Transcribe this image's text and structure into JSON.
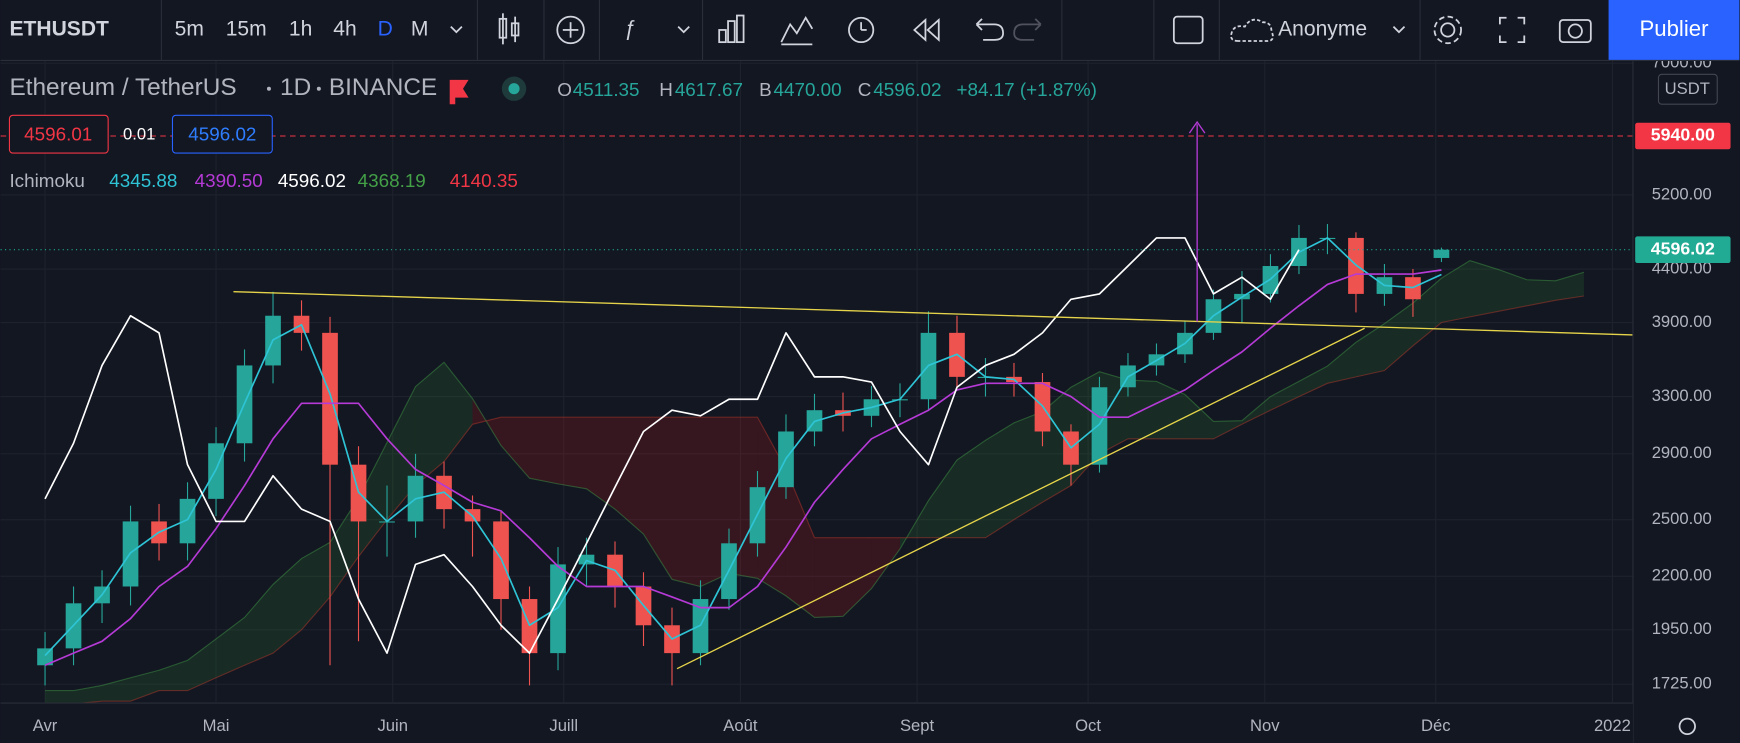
{
  "toolbar": {
    "symbol": "ETHUSDT",
    "intervals": [
      "5m",
      "15m",
      "1h",
      "4h",
      "D",
      "M"
    ],
    "account": "Anonyme",
    "publish": "Publier"
  },
  "legend": {
    "instrument": "Ethereum / TetherUS",
    "timeframe": "1D",
    "exchange": "BINANCE",
    "ohlc": {
      "o_label": "O",
      "o": "4511.35",
      "h_label": "H",
      "h": "4617.67",
      "l_label": "B",
      "l": "4470.00",
      "c_label": "C",
      "c": "4596.02",
      "change": "+84.17 (+1.87%)"
    },
    "sell": "4596.01",
    "spread": "0.01",
    "buy": "4596.02",
    "indicator": "Ichimoku",
    "indicator_values": [
      "4345.88",
      "4390.50",
      "4596.02",
      "4368.19",
      "4140.35"
    ]
  },
  "chart_data": {
    "type": "candlestick",
    "yscale": "log",
    "grid": true,
    "currency": "USDT",
    "up_color": "#26a69a",
    "down_color": "#ef5350",
    "x": [
      0,
      5,
      10,
      15,
      20,
      25,
      30,
      35,
      40,
      45,
      50,
      55,
      60,
      65,
      70,
      75,
      80,
      85,
      90,
      95,
      100,
      105,
      110,
      115,
      120,
      125,
      130,
      135,
      140,
      145,
      150,
      155,
      160,
      165,
      170,
      175,
      180,
      185,
      190,
      195,
      200,
      205,
      210,
      215,
      220,
      225,
      230,
      235,
      240,
      245
    ],
    "open": [
      1800,
      1870,
      2070,
      2150,
      2490,
      2370,
      2620,
      2970,
      3540,
      3960,
      3810,
      2830,
      2490,
      2490,
      2760,
      2560,
      2490,
      2090,
      1850,
      2260,
      2310,
      2150,
      1970,
      1850,
      2090,
      2370,
      2690,
      3050,
      3200,
      3160,
      3280,
      3280,
      3810,
      3450,
      3450,
      3410,
      3050,
      2830,
      3370,
      3540,
      3630,
      3810,
      4110,
      4160,
      4430,
      4720,
      4720,
      4160,
      4320,
      4511.35
    ],
    "high": [
      1940,
      2150,
      2230,
      2580,
      2590,
      2720,
      3080,
      3670,
      4180,
      4100,
      3950,
      2950,
      2700,
      2900,
      2850,
      2640,
      2550,
      2150,
      2350,
      2400,
      2380,
      2220,
      2050,
      2180,
      2450,
      2790,
      3170,
      3320,
      3330,
      3380,
      3400,
      4000,
      3960,
      3600,
      3560,
      3480,
      3100,
      3450,
      3640,
      3720,
      3910,
      4200,
      4380,
      4550,
      4860,
      4870,
      4780,
      4450,
      4400,
      4617.67
    ],
    "low": [
      1720,
      1800,
      1980,
      2060,
      2280,
      2280,
      2520,
      2850,
      3400,
      3660,
      1800,
      1900,
      2300,
      2400,
      2450,
      2300,
      1950,
      1720,
      1780,
      2150,
      2050,
      1880,
      1720,
      1800,
      2040,
      2300,
      2620,
      2950,
      3050,
      3080,
      3150,
      3200,
      3350,
      3300,
      3300,
      2950,
      2700,
      2780,
      3300,
      3460,
      3560,
      3750,
      3900,
      4080,
      4350,
      4550,
      3990,
      4050,
      3950,
      4470.0
    ],
    "close": [
      1870,
      2070,
      2150,
      2490,
      2370,
      2620,
      2970,
      3540,
      3960,
      3810,
      2830,
      2490,
      2490,
      2760,
      2560,
      2490,
      2090,
      1850,
      2260,
      2310,
      2150,
      1970,
      1850,
      2090,
      2370,
      2690,
      3050,
      3200,
      3160,
      3280,
      3280,
      3810,
      3450,
      3450,
      3410,
      3050,
      2830,
      3370,
      3540,
      3630,
      3810,
      4110,
      4160,
      4430,
      4720,
      4720,
      4160,
      4320,
      4110,
      4596.02
    ],
    "xlim": [
      -7.8,
      278.6
    ],
    "xticks": [
      {
        "value": 0,
        "label": "Avr"
      },
      {
        "value": 30,
        "label": "Mai"
      },
      {
        "value": 61,
        "label": "Juin"
      },
      {
        "value": 91,
        "label": "Juill"
      },
      {
        "value": 122,
        "label": "Août"
      },
      {
        "value": 153,
        "label": "Sept"
      },
      {
        "value": 183,
        "label": "Oct"
      },
      {
        "value": 214,
        "label": "Nov"
      },
      {
        "value": 244,
        "label": "Déc"
      },
      {
        "value": 275,
        "label": "2022"
      }
    ],
    "ylim": [
      1657,
      7035
    ],
    "yticks": [
      {
        "value": 7000,
        "label": "7000.00"
      },
      {
        "value": 5200,
        "label": "5200.00"
      },
      {
        "value": 4400,
        "label": "4400.00"
      },
      {
        "value": 3900,
        "label": "3900.00"
      },
      {
        "value": 3300,
        "label": "3300.00"
      },
      {
        "value": 2900,
        "label": "2900.00"
      },
      {
        "value": 2500,
        "label": "2500.00"
      },
      {
        "value": 2200,
        "label": "2200.00"
      },
      {
        "value": 1950,
        "label": "1950.00"
      },
      {
        "value": 1725,
        "label": "1725.00"
      }
    ],
    "price_lines": [
      {
        "value": 5940,
        "label": "5940.00",
        "color": "#f23645",
        "style": "dashed"
      },
      {
        "value": 4596.02,
        "label": "4596.02",
        "color": "#22ab94",
        "style": "dotted"
      }
    ],
    "overlays": [
      {
        "color": "#2ec4d6",
        "x": [
          0,
          5,
          10,
          15,
          20,
          25,
          30,
          35,
          40,
          45,
          50,
          55,
          60,
          65,
          70,
          75,
          80,
          85,
          90,
          95,
          100,
          105,
          110,
          115,
          120,
          125,
          130,
          135,
          140,
          145,
          150,
          155,
          160,
          165,
          170,
          175,
          180,
          185,
          190,
          195,
          200,
          205,
          210,
          215,
          220,
          225,
          230,
          235,
          240,
          245
        ],
        "values": [
          1840,
          1970,
          2110,
          2320,
          2430,
          2500,
          2800,
          3250,
          3750,
          3880,
          3320,
          2660,
          2490,
          2620,
          2660,
          2520,
          2290,
          1970,
          2050,
          2280,
          2230,
          2060,
          1910,
          1970,
          2230,
          2530,
          2870,
          3120,
          3180,
          3220,
          3280,
          3540,
          3630,
          3450,
          3430,
          3230,
          2940,
          3100,
          3450,
          3580,
          3720,
          3960,
          4130,
          4300,
          4570,
          4720,
          4440,
          4240,
          4220,
          4345.88
        ]
      },
      {
        "color": "#b53ad6",
        "x": [
          0,
          5,
          10,
          15,
          20,
          25,
          30,
          35,
          40,
          45,
          50,
          55,
          60,
          65,
          70,
          75,
          80,
          85,
          90,
          95,
          100,
          105,
          110,
          115,
          120,
          125,
          130,
          135,
          140,
          145,
          150,
          155,
          160,
          165,
          170,
          175,
          180,
          185,
          190,
          195,
          200,
          205,
          210,
          215,
          220,
          225,
          230,
          235,
          240,
          245
        ],
        "values": [
          1800,
          1850,
          1900,
          2000,
          2150,
          2250,
          2450,
          2700,
          3000,
          3250,
          3250,
          3250,
          3000,
          2800,
          2700,
          2600,
          2550,
          2400,
          2250,
          2150,
          2150,
          2150,
          2100,
          2050,
          2050,
          2150,
          2350,
          2600,
          2800,
          3000,
          3100,
          3200,
          3350,
          3400,
          3400,
          3400,
          3300,
          3150,
          3150,
          3250,
          3350,
          3500,
          3650,
          3850,
          4050,
          4250,
          4350,
          4350,
          4350,
          4390.5
        ]
      },
      {
        "color": "#ffffff",
        "x": [
          0,
          5,
          10,
          15,
          20,
          25,
          30,
          35,
          40,
          45,
          50,
          55,
          60,
          65,
          70,
          75,
          80,
          85,
          90,
          95,
          100,
          105,
          110,
          115,
          120,
          125,
          130,
          135,
          140,
          145,
          150,
          155,
          160,
          165,
          170,
          175,
          180,
          185,
          190,
          195,
          200,
          205,
          210,
          215,
          220
        ],
        "values": [
          2620,
          2970,
          3540,
          3960,
          3810,
          2830,
          2490,
          2490,
          2760,
          2560,
          2490,
          2090,
          1850,
          2260,
          2310,
          2150,
          1970,
          1850,
          2090,
          2370,
          2690,
          3050,
          3200,
          3160,
          3280,
          3280,
          3810,
          3450,
          3450,
          3410,
          3050,
          2830,
          3370,
          3540,
          3630,
          3810,
          4110,
          4160,
          4430,
          4720,
          4720,
          4160,
          4320,
          4110,
          4596.02
        ]
      }
    ],
    "cloud": {
      "a_color": "#43a047",
      "b_color": "#c0392b",
      "up_fill": "#2e7d32",
      "down_fill": "#b71c1c",
      "x": [
        0,
        5,
        10,
        15,
        20,
        25,
        30,
        35,
        40,
        45,
        50,
        55,
        60,
        65,
        70,
        75,
        80,
        85,
        90,
        95,
        100,
        105,
        110,
        115,
        120,
        125,
        130,
        135,
        140,
        145,
        150,
        155,
        160,
        165,
        170,
        175,
        180,
        185,
        190,
        195,
        200,
        205,
        210,
        215,
        220,
        225,
        230,
        235,
        240,
        245,
        250,
        255,
        260,
        265,
        270
      ],
      "a": [
        1700,
        1700,
        1720,
        1750,
        1780,
        1820,
        1910,
        2005,
        2160,
        2290,
        2375,
        2625,
        2975,
        3375,
        3565,
        3285,
        2955,
        2745,
        2710,
        2680,
        2560,
        2420,
        2185,
        2150,
        2215,
        2190,
        2105,
        2005,
        2010,
        2140,
        2340,
        2610,
        2860,
        2990,
        3110,
        3190,
        3370,
        3490,
        3425,
        3415,
        3315,
        3120,
        3125,
        3300,
        3415,
        3535,
        3730,
        3890,
        4075,
        4310,
        4485,
        4395,
        4295,
        4285,
        4368.19
      ],
      "b": [
        1650,
        1650,
        1660,
        1660,
        1700,
        1700,
        1750,
        1800,
        1850,
        1950,
        2100,
        2300,
        2500,
        2700,
        2850,
        3100,
        3150,
        3150,
        3150,
        3150,
        3150,
        3150,
        3150,
        3150,
        3150,
        3150,
        2800,
        2400,
        2400,
        2400,
        2400,
        2400,
        2400,
        2400,
        2500,
        2600,
        2700,
        2900,
        3000,
        3000,
        3000,
        3000,
        3100,
        3200,
        3300,
        3400,
        3450,
        3500,
        3700,
        3900,
        3950,
        4000,
        4050,
        4100,
        4140.35
      ]
    }
  }
}
